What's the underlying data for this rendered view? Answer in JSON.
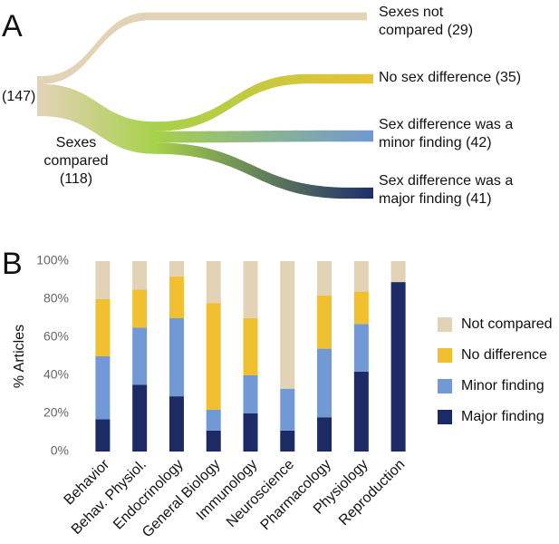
{
  "chart_data": [
    {
      "type": "sankey",
      "panel": "A",
      "total": 147,
      "total_label": "(147)",
      "total_color": "#e3d3b6",
      "labels": [
        "Sexes compared",
        "Sexes not compared",
        "No sex difference",
        "Sex difference was a minor finding",
        "Sex difference was a major finding"
      ],
      "values": [
        118,
        29,
        35,
        42,
        41
      ],
      "value_labels": [
        "(118)",
        "(29)",
        "(35)",
        "(42)",
        "(41)"
      ],
      "colors": [
        "#a6d14a",
        "#e3d3b6",
        "#e8c233",
        "#6f98d4",
        "#1f2d6b"
      ]
    },
    {
      "type": "bar",
      "stacked": true,
      "panel": "B",
      "ylabel": "% Articles",
      "categories": [
        "Behavior",
        "Behav. Physiol.",
        "Endocrinology",
        "General Biology",
        "Immunology",
        "Neuroscience",
        "Pharmacology",
        "Physiology",
        "Reproduction"
      ],
      "series": [
        {
          "name": "Major finding",
          "color": "#1c2a66",
          "values": [
            17,
            35,
            29,
            11,
            20,
            11,
            18,
            42,
            89
          ]
        },
        {
          "name": "Minor finding",
          "color": "#7099d6",
          "values": [
            33,
            30,
            41,
            11,
            20,
            22,
            36,
            25,
            0
          ]
        },
        {
          "name": "No difference",
          "color": "#f0c030",
          "values": [
            30,
            20,
            22,
            56,
            30,
            0,
            28,
            17,
            0
          ]
        },
        {
          "name": "Not compared",
          "color": "#e3d3b6",
          "values": [
            20,
            15,
            8,
            22,
            30,
            67,
            18,
            16,
            11
          ]
        }
      ],
      "ylim": [
        0,
        100
      ],
      "yticks": [
        {
          "value": 0,
          "label": "0%"
        },
        {
          "value": 20,
          "label": "20%"
        },
        {
          "value": 40,
          "label": "40%"
        },
        {
          "value": 60,
          "label": "60%"
        },
        {
          "value": 80,
          "label": "80%"
        },
        {
          "value": 100,
          "label": "100%"
        }
      ],
      "legend": "right",
      "grid": false
    }
  ]
}
